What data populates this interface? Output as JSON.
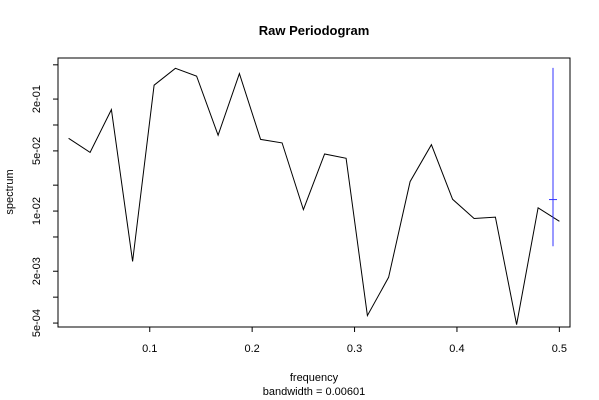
{
  "chart_data": {
    "type": "line",
    "title": "Raw Periodogram",
    "xlabel": "frequency",
    "ylabel": "spectrum",
    "subtitle": "bandwidth = 0.00601",
    "y_scale": "log",
    "xlim": [
      0.0104,
      0.5104
    ],
    "ylim": [
      0.00045,
      0.6
    ],
    "x_ticks": [
      0.1,
      0.2,
      0.3,
      0.4,
      0.5
    ],
    "x_tick_labels": [
      "0.1",
      "0.2",
      "0.3",
      "0.4",
      "0.5"
    ],
    "y_ticks": [
      0.0005,
      0.001,
      0.002,
      0.005,
      0.01,
      0.02,
      0.05,
      0.1,
      0.2,
      0.5
    ],
    "y_tick_labels": [
      "5e-04",
      "",
      "2e-03",
      "",
      "1e-02",
      "",
      "5e-02",
      "",
      "2e-01",
      ""
    ],
    "grid": false,
    "series": [
      {
        "color": "#000000",
        "x": [
          0.0208,
          0.0417,
          0.0625,
          0.0833,
          0.1042,
          0.125,
          0.1458,
          0.1667,
          0.1875,
          0.2083,
          0.2292,
          0.25,
          0.2708,
          0.2917,
          0.3125,
          0.3333,
          0.3542,
          0.375,
          0.3958,
          0.4167,
          0.4375,
          0.4583,
          0.4792,
          0.5
        ],
        "y": [
          0.07,
          0.048,
          0.151,
          0.0026,
          0.29,
          0.455,
          0.37,
          0.076,
          0.395,
          0.068,
          0.062,
          0.0104,
          0.046,
          0.041,
          0.00061,
          0.0017,
          0.022,
          0.059,
          0.0137,
          0.0082,
          0.0085,
          0.00048,
          0.0109,
          0.0076
        ]
      }
    ],
    "confidence_bar": {
      "color": "#3333ff",
      "x": 0.4938,
      "center": 0.0136,
      "lower": 0.0039,
      "upper": 0.46
    }
  }
}
